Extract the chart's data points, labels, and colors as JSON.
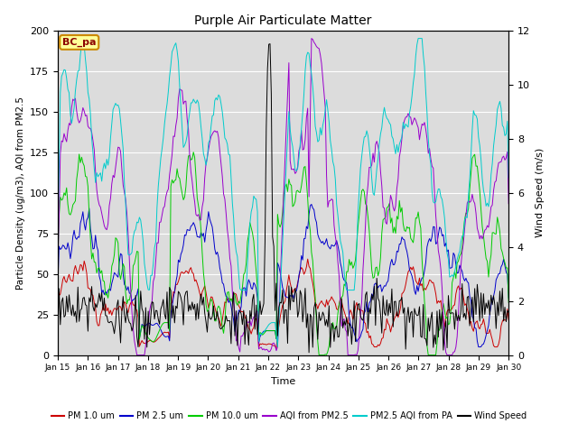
{
  "title": "Purple Air Particulate Matter",
  "xlabel": "Time",
  "ylabel_left": "Particle Density (ug/m3), AQI from PM2.5",
  "ylabel_right": "Wind Speed (m/s)",
  "annotation_text": "BC_pa",
  "ylim_left": [
    0,
    200
  ],
  "ylim_right": [
    0,
    12
  ],
  "num_points": 360,
  "tick_labels": [
    "Jan 15",
    "Jan 16",
    "Jan 17",
    "Jan 18",
    "Jan 19",
    "Jan 20",
    "Jan 21",
    "Jan 22",
    "Jan 23",
    "Jan 24",
    "Jan 25",
    "Jan 26",
    "Jan 27",
    "Jan 28",
    "Jan 29",
    "Jan 30"
  ],
  "colors": {
    "pm1": "#cc0000",
    "pm25": "#0000cc",
    "pm10": "#00cc00",
    "aqi_pm25": "#9900cc",
    "pm25_aqi_pa": "#00cccc",
    "wind": "#000000"
  },
  "legend_labels": [
    "PM 1.0 um",
    "PM 2.5 um",
    "PM 10.0 um",
    "AQI from PM2.5",
    "PM2.5 AQI from PA",
    "Wind Speed"
  ],
  "bg_color": "#dcdcdc",
  "annotation_bg": "#ffff99",
  "annotation_border": "#cc8800"
}
